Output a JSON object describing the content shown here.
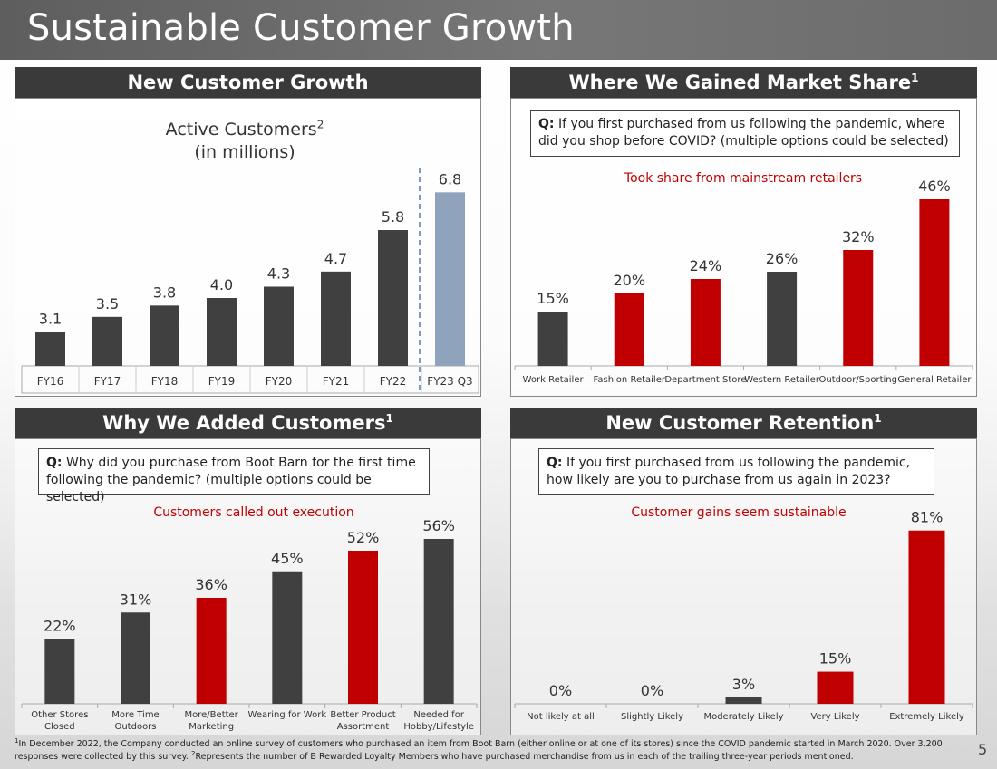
{
  "page": {
    "title": "Sustainable Customer Growth",
    "page_number": "5"
  },
  "footnote": {
    "sup1": "1",
    "part1": "In December 2022, the Company conducted an online survey of customers who purchased an item from Boot Barn (either online or at one of its stores) since the COVID pandemic started in March 2020. Over 3,200 responses were collected by this survey. ",
    "sup2": "2",
    "part2": "Represents the number of B Rewarded Loyalty Members who have purchased merchandise from us in each of the trailing three-year periods mentioned."
  },
  "panels": {
    "growth": {
      "header": "New Customer Growth",
      "chart_title_line1": "Active Customers",
      "chart_title_sup": "2",
      "chart_title_line2": "(in millions)"
    },
    "market_share": {
      "header": "Where We Gained Market Share",
      "header_sup": "1",
      "question_prefix": "Q:",
      "question": " If you first purchased from us following the pandemic, where did you shop before COVID? (multiple options could be selected)",
      "callout": "Took share from mainstream retailers"
    },
    "why": {
      "header": "Why We Added Customers",
      "header_sup": "1",
      "question_prefix": "Q:",
      "question": " Why did you purchase from Boot Barn for the first time following the pandemic? (multiple options could be selected)",
      "callout": "Customers called out execution"
    },
    "retention": {
      "header": "New Customer Retention",
      "header_sup": "1",
      "question_prefix": "Q:",
      "question": " If you first purchased from us following the pandemic, how likely are you to purchase from us again in 2023?",
      "callout": "Customer gains seem sustainable"
    }
  },
  "colors": {
    "dark": "#404040",
    "red": "#c00000",
    "blue": "#8fa3bc"
  },
  "chart_data": [
    {
      "id": "growth",
      "type": "bar",
      "title": "Active Customers (in millions)",
      "categories": [
        "FY16",
        "FY17",
        "FY18",
        "FY19",
        "FY20",
        "FY21",
        "FY22",
        "FY23 Q3"
      ],
      "values": [
        3.1,
        3.5,
        3.8,
        4.0,
        4.3,
        4.7,
        5.8,
        6.8
      ],
      "labels": [
        "3.1",
        "3.5",
        "3.8",
        "4.0",
        "4.3",
        "4.7",
        "5.8",
        "6.8"
      ],
      "colors": [
        "dark",
        "dark",
        "dark",
        "dark",
        "dark",
        "dark",
        "dark",
        "blue"
      ],
      "ylim": [
        2.2,
        7
      ]
    },
    {
      "id": "market_share",
      "type": "bar",
      "categories": [
        [
          "Work Retailer"
        ],
        [
          "Fashion Retailer"
        ],
        [
          "Department Store"
        ],
        [
          "Western Retailer"
        ],
        [
          "Outdoor/Sporting"
        ],
        [
          "General Retailer"
        ]
      ],
      "values": [
        15,
        20,
        24,
        26,
        32,
        46
      ],
      "labels": [
        "15%",
        "20%",
        "24%",
        "26%",
        "32%",
        "46%"
      ],
      "colors": [
        "dark",
        "red",
        "red",
        "dark",
        "red",
        "red"
      ],
      "ylim": [
        0,
        50
      ]
    },
    {
      "id": "why",
      "type": "bar",
      "categories": [
        [
          "Other Stores",
          "Closed"
        ],
        [
          "More Time",
          "Outdoors"
        ],
        [
          "More/Better",
          "Marketing"
        ],
        [
          "Wearing for Work"
        ],
        [
          "Better Product",
          "Assortment"
        ],
        [
          "Needed for",
          "Hobby/Lifestyle"
        ]
      ],
      "values": [
        22,
        31,
        36,
        45,
        52,
        56
      ],
      "labels": [
        "22%",
        "31%",
        "36%",
        "45%",
        "52%",
        "56%"
      ],
      "colors": [
        "dark",
        "dark",
        "red",
        "dark",
        "red",
        "dark"
      ],
      "ylim": [
        0,
        60
      ]
    },
    {
      "id": "retention",
      "type": "bar",
      "categories": [
        [
          "Not likely at all"
        ],
        [
          "Slightly Likely"
        ],
        [
          "Moderately Likely"
        ],
        [
          "Very Likely"
        ],
        [
          "Extremely Likely"
        ]
      ],
      "values": [
        0,
        0,
        3,
        15,
        81
      ],
      "labels": [
        "0%",
        "0%",
        "3%",
        "15%",
        "81%"
      ],
      "colors": [
        "dark",
        "dark",
        "dark",
        "red",
        "red"
      ],
      "ylim": [
        0,
        83
      ]
    }
  ]
}
